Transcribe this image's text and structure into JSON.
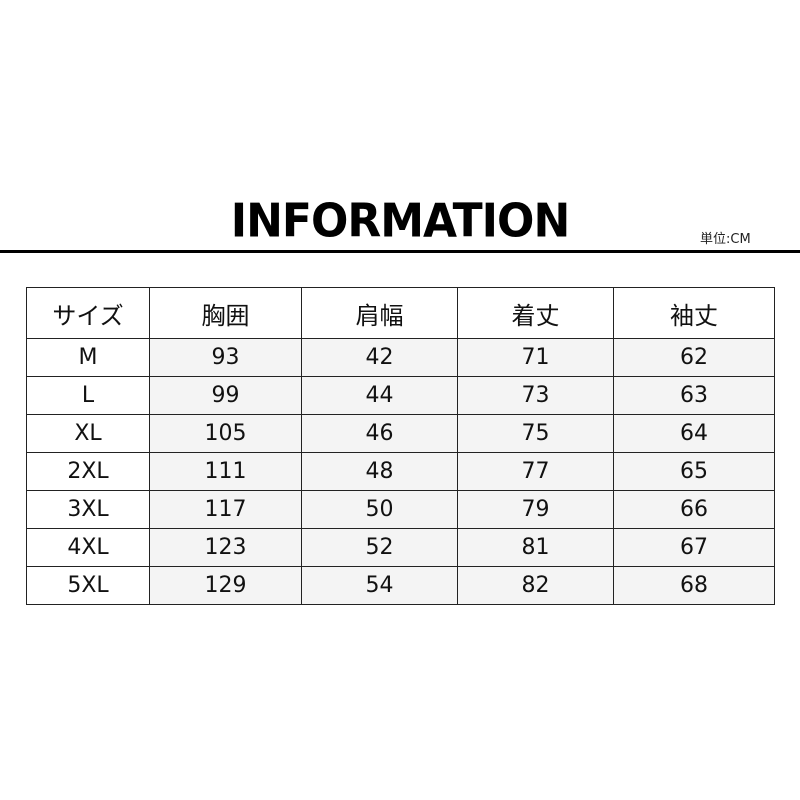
{
  "title": "INFORMATION",
  "unit_label": "単位:CM",
  "table": {
    "headers": [
      "サイズ",
      "胸囲",
      "肩幅",
      "着丈",
      "袖丈"
    ],
    "rows": [
      [
        "M",
        "93",
        "42",
        "71",
        "62"
      ],
      [
        "L",
        "99",
        "44",
        "73",
        "63"
      ],
      [
        "XL",
        "105",
        "46",
        "75",
        "64"
      ],
      [
        "2XL",
        "111",
        "48",
        "77",
        "65"
      ],
      [
        "3XL",
        "117",
        "50",
        "79",
        "66"
      ],
      [
        "4XL",
        "123",
        "52",
        "81",
        "67"
      ],
      [
        "5XL",
        "129",
        "54",
        "82",
        "68"
      ]
    ]
  }
}
